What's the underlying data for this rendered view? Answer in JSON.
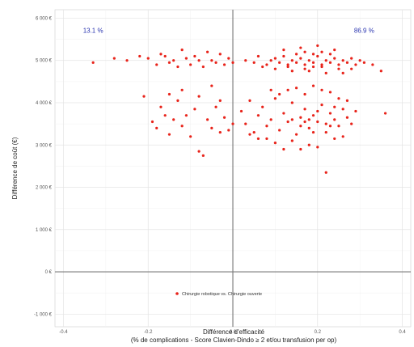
{
  "chart_data": {
    "type": "scatter",
    "xlabel": "Différence d'efficacité",
    "xlabel_line2": "(% de complications - Score Clavien-Dindo ≥ 2 et/ou transfusion per op)",
    "ylabel": "Différence de coût (€)",
    "xlim": [
      -0.42,
      0.42
    ],
    "ylim": [
      -1300,
      6200
    ],
    "x_ticks": [
      -0.4,
      -0.2,
      0.0,
      0.2,
      0.4
    ],
    "x_tick_labels": [
      "-0.4",
      "-0.2",
      "0.0",
      "0.2",
      "0.4"
    ],
    "y_ticks": [
      -1000,
      0,
      1000,
      2000,
      3000,
      4000,
      5000,
      6000
    ],
    "y_tick_labels": [
      "-1 000 €",
      "0 €",
      "1 000 €",
      "2 000 €",
      "3 000 €",
      "4 000 €",
      "5 000 €",
      "6 000 €"
    ],
    "grid": true,
    "legend_position": "bottom-center",
    "annotations": [
      {
        "text": "13.1 %",
        "x": -0.33,
        "y": 5650
      },
      {
        "text": "86.9 %",
        "x": 0.31,
        "y": 5650
      }
    ],
    "series": [
      {
        "name": "Chirurgie robotique vs. Chirurgie ouverte",
        "color": "#e8231a",
        "points": [
          [
            -0.33,
            4950
          ],
          [
            -0.28,
            5050
          ],
          [
            -0.25,
            5000
          ],
          [
            -0.22,
            5100
          ],
          [
            -0.21,
            4150
          ],
          [
            -0.2,
            5050
          ],
          [
            -0.18,
            4900
          ],
          [
            -0.17,
            5150
          ],
          [
            -0.16,
            5100
          ],
          [
            -0.15,
            4950
          ],
          [
            -0.14,
            5000
          ],
          [
            -0.13,
            4850
          ],
          [
            -0.12,
            5250
          ],
          [
            -0.11,
            5050
          ],
          [
            -0.1,
            4900
          ],
          [
            -0.09,
            5100
          ],
          [
            -0.08,
            5000
          ],
          [
            -0.07,
            4850
          ],
          [
            -0.06,
            5200
          ],
          [
            -0.05,
            5000
          ],
          [
            -0.04,
            4950
          ],
          [
            -0.03,
            5150
          ],
          [
            -0.02,
            4900
          ],
          [
            -0.01,
            5050
          ],
          [
            0.0,
            4950
          ],
          [
            -0.19,
            3550
          ],
          [
            -0.18,
            3400
          ],
          [
            -0.17,
            3900
          ],
          [
            -0.16,
            3700
          ],
          [
            -0.15,
            3250
          ],
          [
            -0.14,
            3600
          ],
          [
            -0.13,
            4050
          ],
          [
            -0.12,
            3450
          ],
          [
            -0.11,
            3700
          ],
          [
            -0.1,
            3200
          ],
          [
            -0.09,
            3850
          ],
          [
            -0.08,
            2850
          ],
          [
            -0.07,
            2750
          ],
          [
            -0.06,
            3600
          ],
          [
            -0.05,
            3400
          ],
          [
            -0.04,
            3900
          ],
          [
            -0.03,
            3300
          ],
          [
            -0.02,
            3650
          ],
          [
            -0.01,
            3350
          ],
          [
            0.0,
            3500
          ],
          [
            -0.15,
            4200
          ],
          [
            -0.12,
            4300
          ],
          [
            -0.08,
            4150
          ],
          [
            -0.05,
            4400
          ],
          [
            -0.03,
            4050
          ],
          [
            0.03,
            5000
          ],
          [
            0.05,
            4950
          ],
          [
            0.06,
            5100
          ],
          [
            0.08,
            4900
          ],
          [
            0.09,
            5000
          ],
          [
            0.1,
            5050
          ],
          [
            0.11,
            4950
          ],
          [
            0.12,
            5100
          ],
          [
            0.13,
            4900
          ],
          [
            0.14,
            5000
          ],
          [
            0.15,
            4950
          ],
          [
            0.16,
            5050
          ],
          [
            0.17,
            4900
          ],
          [
            0.18,
            5000
          ],
          [
            0.19,
            4950
          ],
          [
            0.2,
            5100
          ],
          [
            0.21,
            4900
          ],
          [
            0.22,
            5000
          ],
          [
            0.23,
            4950
          ],
          [
            0.24,
            5050
          ],
          [
            0.25,
            4900
          ],
          [
            0.26,
            5000
          ],
          [
            0.27,
            4950
          ],
          [
            0.28,
            5050
          ],
          [
            0.29,
            4900
          ],
          [
            0.3,
            5000
          ],
          [
            0.31,
            4950
          ],
          [
            0.33,
            4900
          ],
          [
            0.35,
            4750
          ],
          [
            0.12,
            5250
          ],
          [
            0.16,
            5300
          ],
          [
            0.2,
            5350
          ],
          [
            0.24,
            5250
          ],
          [
            0.18,
            4750
          ],
          [
            0.22,
            4700
          ],
          [
            0.14,
            4750
          ],
          [
            0.26,
            4700
          ],
          [
            0.1,
            4800
          ],
          [
            0.28,
            4800
          ],
          [
            0.07,
            4850
          ],
          [
            0.15,
            5150
          ],
          [
            0.17,
            5200
          ],
          [
            0.19,
            5150
          ],
          [
            0.21,
            5200
          ],
          [
            0.23,
            5150
          ],
          [
            0.13,
            4850
          ],
          [
            0.17,
            4800
          ],
          [
            0.21,
            4850
          ],
          [
            0.25,
            4800
          ],
          [
            0.19,
            4850
          ],
          [
            0.02,
            3800
          ],
          [
            0.03,
            3500
          ],
          [
            0.04,
            4050
          ],
          [
            0.05,
            3300
          ],
          [
            0.06,
            3700
          ],
          [
            0.07,
            3900
          ],
          [
            0.08,
            3450
          ],
          [
            0.09,
            3600
          ],
          [
            0.1,
            4100
          ],
          [
            0.11,
            3350
          ],
          [
            0.12,
            3750
          ],
          [
            0.13,
            3550
          ],
          [
            0.14,
            4000
          ],
          [
            0.15,
            3250
          ],
          [
            0.16,
            3650
          ],
          [
            0.17,
            3850
          ],
          [
            0.18,
            3400
          ],
          [
            0.19,
            3700
          ],
          [
            0.2,
            3550
          ],
          [
            0.21,
            3950
          ],
          [
            0.22,
            3300
          ],
          [
            0.23,
            3750
          ],
          [
            0.24,
            3600
          ],
          [
            0.25,
            3450
          ],
          [
            0.26,
            3850
          ],
          [
            0.27,
            3650
          ],
          [
            0.28,
            3500
          ],
          [
            0.29,
            3800
          ],
          [
            0.14,
            3100
          ],
          [
            0.18,
            3000
          ],
          [
            0.2,
            2950
          ],
          [
            0.22,
            2350
          ],
          [
            0.16,
            2900
          ],
          [
            0.24,
            3150
          ],
          [
            0.12,
            2900
          ],
          [
            0.1,
            3050
          ],
          [
            0.08,
            3150
          ],
          [
            0.26,
            3200
          ],
          [
            0.36,
            3750
          ],
          [
            0.06,
            3150
          ],
          [
            0.04,
            3250
          ],
          [
            0.15,
            4350
          ],
          [
            0.19,
            4400
          ],
          [
            0.23,
            4250
          ],
          [
            0.17,
            4200
          ],
          [
            0.21,
            4300
          ],
          [
            0.11,
            4200
          ],
          [
            0.25,
            4100
          ],
          [
            0.13,
            4300
          ],
          [
            0.27,
            4050
          ],
          [
            0.09,
            4300
          ],
          [
            0.16,
            3450
          ],
          [
            0.2,
            3800
          ],
          [
            0.18,
            3600
          ],
          [
            0.22,
            3500
          ],
          [
            0.14,
            3600
          ],
          [
            0.24,
            3900
          ],
          [
            0.19,
            3300
          ],
          [
            0.17,
            3550
          ],
          [
            0.23,
            3450
          ]
        ]
      }
    ]
  }
}
